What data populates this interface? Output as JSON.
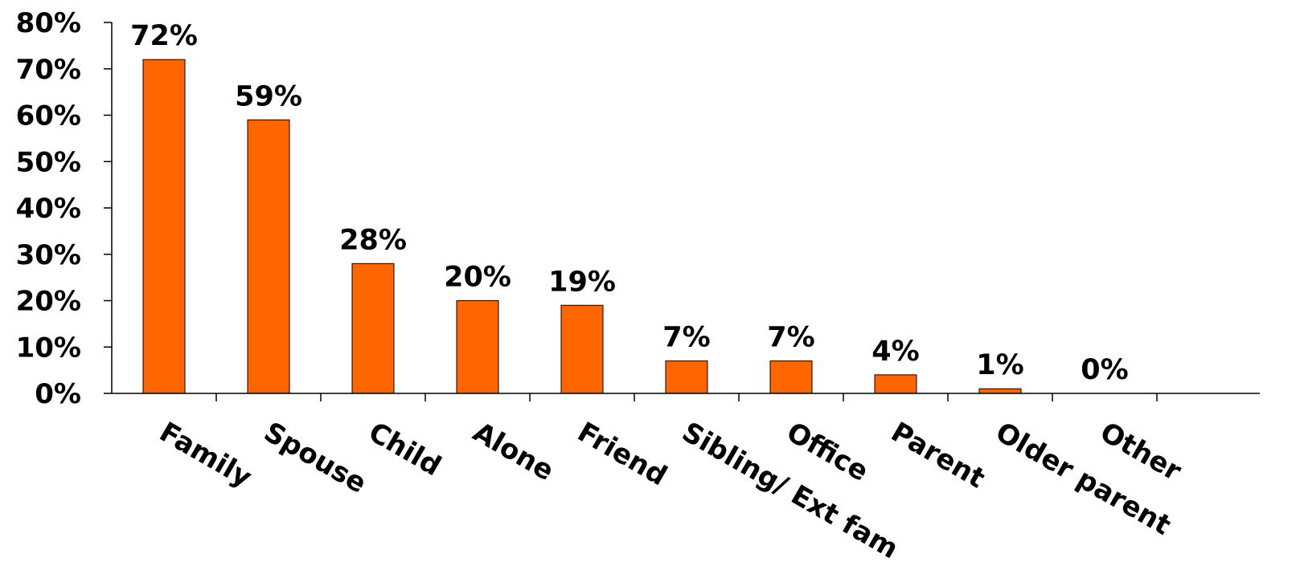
{
  "chart_data": {
    "type": "bar",
    "title": "",
    "xlabel": "",
    "ylabel": "",
    "categories": [
      "Family",
      "Spouse",
      "Child",
      "Alone",
      "Friend",
      "Sibling/ Ext fam",
      "Office",
      "Parent",
      "Older parent",
      "Other"
    ],
    "values": [
      72,
      59,
      28,
      20,
      19,
      7,
      7,
      4,
      1,
      0
    ],
    "data_labels": [
      "72%",
      "59%",
      "28%",
      "20%",
      "19%",
      "7%",
      "7%",
      "4%",
      "1%",
      "0%"
    ],
    "y_ticks": [
      0,
      10,
      20,
      30,
      40,
      50,
      60,
      70,
      80
    ],
    "y_tick_labels": [
      "0%",
      "10%",
      "20%",
      "30%",
      "40%",
      "50%",
      "60%",
      "70%",
      "80%"
    ],
    "ylim": [
      0,
      80
    ],
    "grid": false,
    "legend": "none",
    "colors": {
      "bar": "#ff6600",
      "bar_border": "#000000"
    }
  }
}
